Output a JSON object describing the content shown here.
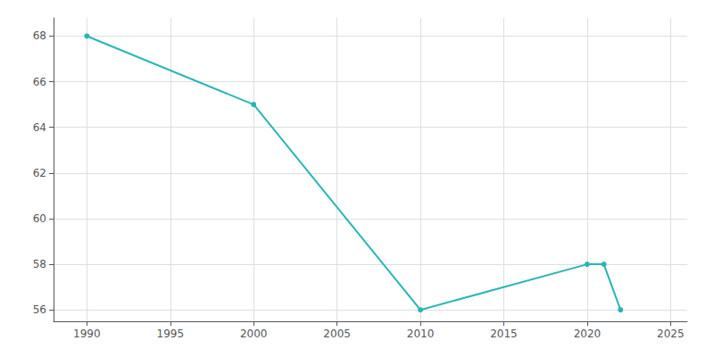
{
  "chart_data": {
    "type": "line",
    "x": [
      1990,
      2000,
      2010,
      2020,
      2021,
      2022
    ],
    "values": [
      68,
      65,
      56,
      58,
      58,
      56
    ],
    "color": "#2ab5b5",
    "marker": "circle",
    "xlim": [
      1988,
      2026
    ],
    "ylim": [
      55.5,
      68.8
    ],
    "xticks": [
      1990,
      1995,
      2000,
      2005,
      2010,
      2015,
      2020,
      2025
    ],
    "yticks": [
      56,
      58,
      60,
      62,
      64,
      66,
      68
    ],
    "grid": true
  }
}
